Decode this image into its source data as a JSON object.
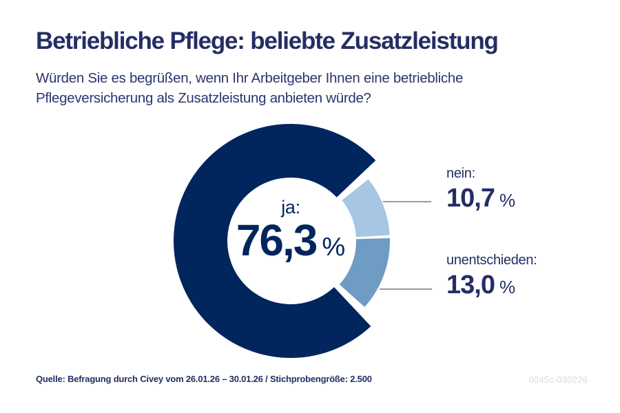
{
  "header": {
    "title": "Betriebliche Pflege: beliebte Zusatzleistung",
    "question_lines": [
      "Würden Sie es begrüßen, wenn Ihr Arbeitgeber Ihnen eine betriebliche",
      "Pflegeversicherung als Zusatzleistung anbieten würde?"
    ]
  },
  "chart_data": {
    "type": "pie",
    "variant": "donut",
    "title": "Betriebliche Pflege: beliebte Zusatzleistung",
    "subtitle": "Würden Sie es begrüßen, wenn Ihr Arbeitgeber Ihnen eine betriebliche Pflegeversicherung als Zusatzleistung anbieten würde?",
    "unit": "%",
    "percent_sign": "%",
    "segments": [
      {
        "label": "ja",
        "display_label": "ja:",
        "value": 76.3,
        "display_value": "76,3",
        "color": "#01255d",
        "label_placement": "center"
      },
      {
        "label": "nein",
        "display_label": "nein:",
        "value": 10.7,
        "display_value": "10,7",
        "color": "#a6c6e3",
        "label_placement": "right-top"
      },
      {
        "label": "unentschieden",
        "display_label": "unentschieden:",
        "value": 13.0,
        "display_value": "13,0",
        "color": "#6f9cc3",
        "label_placement": "right-bottom"
      }
    ],
    "colors": {
      "primary_navy": "#01255d",
      "text_navy": "#252e63",
      "leader_line_gray": "#9b9b9b"
    },
    "legend_position": "right labels with leader lines"
  },
  "footer": {
    "source": "Quelle: Befragung durch Civey vom 26.01.26 – 30.01.26 / Stichprobengröße: 2.500",
    "code": "0045c-030226"
  }
}
